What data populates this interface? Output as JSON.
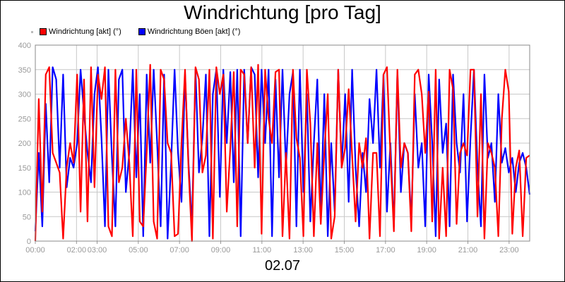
{
  "chart_data": {
    "type": "line",
    "title": "Windrichtung [pro Tag]",
    "date_label": "02.07",
    "ylim": [
      0,
      400
    ],
    "y_ticks": [
      "0",
      "50",
      "100",
      "150",
      "200",
      "250",
      "300",
      "350",
      "400"
    ],
    "x_ticks": [
      "00:00",
      "02:00",
      "03:00",
      "05:00",
      "07:00",
      "09:00",
      "11:00",
      "13:00",
      "15:00",
      "17:00",
      "19:00",
      "21:00",
      "23:00"
    ],
    "x_tick_hours": [
      0,
      2,
      3,
      5,
      7,
      9,
      11,
      13,
      15,
      17,
      19,
      21,
      23
    ],
    "xlim_hours": [
      0,
      24
    ],
    "grid": true,
    "legend_position": "top-left",
    "series": [
      {
        "name": "Windrichtung [akt] (°)",
        "color": "#ff0000",
        "values": [
          0,
          290,
          60,
          340,
          355,
          180,
          160,
          140,
          5,
          150,
          200,
          160,
          340,
          60,
          330,
          40,
          355,
          110,
          340,
          290,
          355,
          30,
          10,
          350,
          120,
          150,
          250,
          160,
          10,
          350,
          40,
          30,
          180,
          360,
          40,
          5,
          350,
          330,
          200,
          180,
          10,
          15,
          200,
          350,
          150,
          0,
          355,
          330,
          140,
          175,
          350,
          5,
          355,
          300,
          340,
          60,
          190,
          345,
          30,
          350,
          340,
          200,
          355,
          150,
          360,
          15,
          350,
          250,
          200,
          345,
          350,
          10,
          180,
          5,
          350,
          210,
          170,
          10,
          350,
          240,
          10,
          200,
          35,
          180,
          300,
          5,
          50,
          350,
          150,
          190,
          310,
          175,
          40,
          200,
          150,
          210,
          5,
          180,
          180,
          10,
          340,
          355,
          175,
          20,
          350,
          150,
          200,
          180,
          20,
          340,
          350,
          300,
          180,
          305,
          40,
          350,
          5,
          150,
          10,
          350,
          310,
          35,
          180,
          200,
          175,
          350,
          350,
          50,
          300,
          5,
          200,
          180,
          150,
          10,
          250,
          350,
          305,
          15,
          150,
          185,
          10,
          170,
          175
        ]
      },
      {
        "name": "Windrichtung Böen [akt] (°)",
        "color": "#0000ff",
        "values": [
          20,
          180,
          30,
          280,
          120,
          355,
          330,
          150,
          340,
          110,
          170,
          150,
          200,
          350,
          260,
          180,
          120,
          300,
          355,
          210,
          30,
          350,
          170,
          30,
          330,
          350,
          100,
          180,
          350,
          130,
          300,
          10,
          340,
          160,
          350,
          200,
          30,
          340,
          5,
          160,
          350,
          180,
          80,
          340,
          160,
          30,
          350,
          140,
          210,
          340,
          10,
          300,
          350,
          90,
          350,
          200,
          345,
          120,
          350,
          10,
          350,
          200,
          355,
          340,
          130,
          350,
          200,
          350,
          10,
          330,
          130,
          350,
          150,
          300,
          345,
          30,
          350,
          100,
          300,
          40,
          200,
          330,
          50,
          300,
          10,
          200,
          60,
          350,
          150,
          300,
          80,
          350,
          150,
          30,
          180,
          100,
          290,
          200,
          350,
          150,
          340,
          60,
          200,
          30,
          345,
          100,
          200,
          180,
          40,
          300,
          150,
          200,
          30,
          340,
          200,
          10,
          330,
          180,
          240,
          30,
          340,
          200,
          140,
          300,
          40,
          210,
          350,
          150,
          30,
          340,
          170,
          200,
          80,
          300,
          160,
          190,
          140,
          170,
          100,
          160,
          180,
          150,
          95
        ]
      }
    ]
  }
}
